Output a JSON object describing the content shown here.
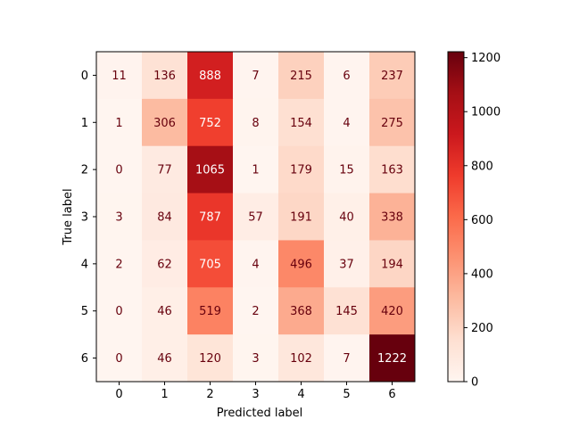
{
  "chart_data": {
    "type": "heatmap",
    "title": "",
    "xlabel": "Predicted label",
    "ylabel": "True label",
    "x_categories": [
      "0",
      "1",
      "2",
      "3",
      "4",
      "5",
      "6"
    ],
    "y_categories": [
      "0",
      "1",
      "2",
      "3",
      "4",
      "5",
      "6"
    ],
    "values": [
      [
        11,
        136,
        888,
        7,
        215,
        6,
        237
      ],
      [
        1,
        306,
        752,
        8,
        154,
        4,
        275
      ],
      [
        0,
        77,
        1065,
        1,
        179,
        15,
        163
      ],
      [
        3,
        84,
        787,
        57,
        191,
        40,
        338
      ],
      [
        2,
        62,
        705,
        4,
        496,
        37,
        194
      ],
      [
        0,
        46,
        519,
        2,
        368,
        145,
        420
      ],
      [
        0,
        46,
        120,
        3,
        102,
        7,
        1222
      ]
    ],
    "colormap": "Reds",
    "colorbar": {
      "min": 0,
      "max": 1222,
      "ticks": [
        "0",
        "200",
        "400",
        "600",
        "800",
        "1000",
        "1200"
      ]
    },
    "grid": false
  }
}
